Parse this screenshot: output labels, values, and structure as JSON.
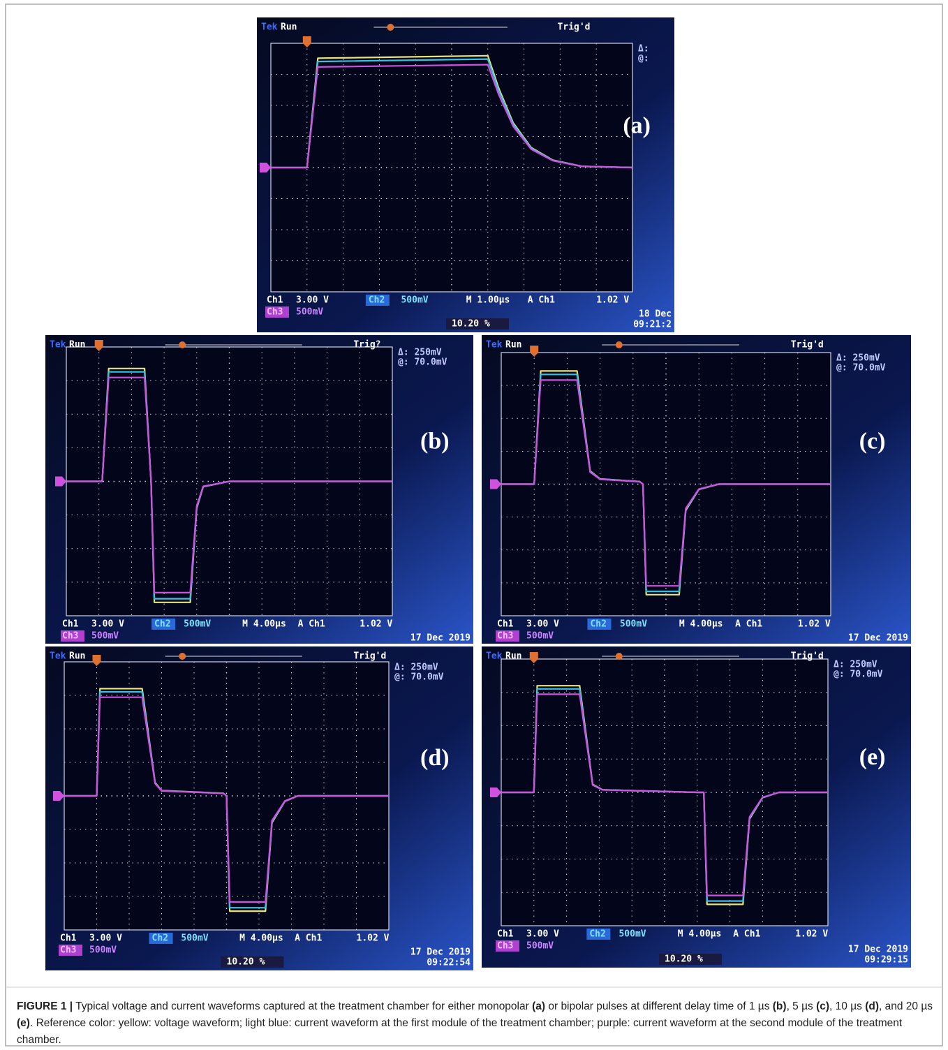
{
  "panels": [
    {
      "label": "(a)",
      "brand": "Tek",
      "status": "Run",
      "trigger": "Trig'd",
      "delta": "Δ:",
      "cursor": "@:",
      "ch1": "Ch1",
      "ch1_scale": "3.00 V",
      "ch2": "Ch2",
      "ch2_scale": "500mV",
      "timebase": "M 1.00µs",
      "trig_source": "A  Ch1",
      "trig_level": "1.02 V",
      "ch3": "Ch3",
      "ch3_scale": "500mV",
      "trig_pos": "10.20 %",
      "date": "18 Dec",
      "time": "09:21:2"
    },
    {
      "label": "(b)",
      "brand": "Tek",
      "status": "Run",
      "trigger": "Trig?",
      "delta": "Δ:  250mV",
      "cursor": "@:  70.0mV",
      "ch1": "Ch1",
      "ch1_scale": "3.00 V",
      "ch2": "Ch2",
      "ch2_scale": "500mV",
      "timebase": "M 4.00µs",
      "trig_source": "A  Ch1",
      "trig_level": "1.02 V",
      "ch3": "Ch3",
      "ch3_scale": "500mV",
      "date": "17 Dec 2019"
    },
    {
      "label": "(c)",
      "brand": "Tek",
      "status": "Run",
      "trigger": "Trig'd",
      "delta": "Δ:  250mV",
      "cursor": "@:  70.0mV",
      "ch1": "Ch1",
      "ch1_scale": "3.00 V",
      "ch2": "Ch2",
      "ch2_scale": "500mV",
      "timebase": "M 4.00µs",
      "trig_source": "A  Ch1",
      "trig_level": "1.02 V",
      "ch3": "Ch3",
      "ch3_scale": "500mV",
      "date": "17 Dec 2019"
    },
    {
      "label": "(d)",
      "brand": "Tek",
      "status": "Run",
      "trigger": "Trig'd",
      "delta": "Δ:  250mV",
      "cursor": "@:  70.0mV",
      "ch1": "Ch1",
      "ch1_scale": "3.00 V",
      "ch2": "Ch2",
      "ch2_scale": "500mV",
      "timebase": "M 4.00µs",
      "trig_source": "A  Ch1",
      "trig_level": "1.02 V",
      "ch3": "Ch3",
      "ch3_scale": "500mV",
      "trig_pos": "10.20 %",
      "date": "17 Dec 2019",
      "time": "09:22:54"
    },
    {
      "label": "(e)",
      "brand": "Tek",
      "status": "Run",
      "trigger": "Trig'd",
      "delta": "Δ:  250mV",
      "cursor": "@:  70.0mV",
      "ch1": "Ch1",
      "ch1_scale": "3.00 V",
      "ch2": "Ch2",
      "ch2_scale": "500mV",
      "timebase": "M 4.00µs",
      "trig_source": "A  Ch1",
      "trig_level": "1.02 V",
      "ch3": "Ch3",
      "ch3_scale": "500mV",
      "trig_pos": "10.20 %",
      "date": "17 Dec 2019",
      "time": "09:29:15"
    }
  ],
  "caption": {
    "segments": [
      {
        "text": "FIGURE 1 |",
        "bold": true
      },
      {
        "text": " Typical voltage and current waveforms captured at the treatment chamber for either monopolar ",
        "bold": false
      },
      {
        "text": "(a)",
        "bold": true
      },
      {
        "text": " or bipolar pulses at different delay time of 1 µs ",
        "bold": false
      },
      {
        "text": "(b)",
        "bold": true
      },
      {
        "text": ", 5 µs ",
        "bold": false
      },
      {
        "text": "(c)",
        "bold": true
      },
      {
        "text": ", 10 µs ",
        "bold": false
      },
      {
        "text": "(d)",
        "bold": true
      },
      {
        "text": ", and 20 µs ",
        "bold": false
      },
      {
        "text": "(e)",
        "bold": true
      },
      {
        "text": ". Reference color: yellow: voltage waveform; light blue: current waveform at the first module of the treatment chamber; purple: current waveform at the second module of the treatment chamber.",
        "bold": false
      }
    ]
  }
}
